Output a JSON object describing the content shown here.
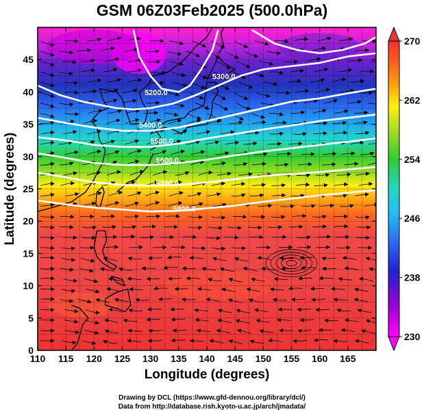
{
  "title": "GSM 06Z03Feb2025 (500.0hPa)",
  "credits": [
    "Drawing by DCL (https://www.gfd-dennou.org/library/dcl/)",
    "Data from http://database.rish.kyoto-u.ac.jp/arch/jmadata/"
  ],
  "chart_data": {
    "type": "heatmap",
    "title": "GSM 06Z03Feb2025 (500.0hPa)",
    "xlabel": "Longitude (degrees)",
    "ylabel": "Latitude  (degrees)",
    "xlim": [
      110,
      170
    ],
    "ylim": [
      0,
      50
    ],
    "x_ticks": [
      110,
      115,
      120,
      125,
      130,
      135,
      140,
      145,
      150,
      155,
      160,
      165
    ],
    "y_ticks": [
      0,
      5,
      10,
      15,
      20,
      25,
      30,
      35,
      40,
      45
    ],
    "fill_variable_range": [
      230,
      270
    ],
    "colorbar": {
      "min": 230,
      "max": 270,
      "tick_labels": [
        "230",
        "238",
        "246",
        "254",
        "262",
        "270"
      ],
      "extend": "both"
    },
    "contour_labels": [
      {
        "text": "5200.0",
        "lon": 131,
        "lat": 39.5
      },
      {
        "text": "5300.0",
        "lon": 143,
        "lat": 42.0
      },
      {
        "text": "5400.0",
        "lon": 130,
        "lat": 34.5
      },
      {
        "text": "5500.0",
        "lon": 132,
        "lat": 32.0
      },
      {
        "text": "5600.0",
        "lon": 133,
        "lat": 29.0
      },
      {
        "text": "5700.0",
        "lon": 133,
        "lat": 25.5
      },
      {
        "text": "5800.0",
        "lon": 136,
        "lat": 21.5
      }
    ],
    "contours": [
      {
        "level": 5200,
        "lon": [
          127,
          128,
          130,
          132,
          135,
          137,
          139,
          141,
          142
        ],
        "lat": [
          49.6,
          45.5,
          42.5,
          40.5,
          40.0,
          41.0,
          43.5,
          46.5,
          49.6
        ]
      },
      {
        "level": 5300,
        "lon": [
          110,
          114,
          118,
          121,
          124,
          127,
          130,
          134,
          138,
          142,
          146,
          150,
          155,
          160,
          165,
          170
        ],
        "lat": [
          41.0,
          39.5,
          38.5,
          38.0,
          37.5,
          37.3,
          37.5,
          38.2,
          39.5,
          41.0,
          42.5,
          43.5,
          44.0,
          44.5,
          45.5,
          46.0
        ]
      },
      {
        "level": 5400,
        "lon": [
          110,
          115,
          120,
          125,
          130,
          135,
          140,
          145,
          150,
          155,
          160,
          165,
          170
        ],
        "lat": [
          36.0,
          35.2,
          34.5,
          34.0,
          34.0,
          34.5,
          35.5,
          36.5,
          37.5,
          38.5,
          39.0,
          39.8,
          40.5
        ]
      },
      {
        "level": 5500,
        "lon": [
          110,
          115,
          120,
          125,
          130,
          135,
          140,
          145,
          150,
          155,
          160,
          165,
          170
        ],
        "lat": [
          33.0,
          32.5,
          31.8,
          31.5,
          31.5,
          32.0,
          32.8,
          33.5,
          34.2,
          34.8,
          35.5,
          36.0,
          36.5
        ]
      },
      {
        "level": 5600,
        "lon": [
          110,
          115,
          120,
          125,
          130,
          135,
          140,
          145,
          150,
          155,
          160,
          165,
          170
        ],
        "lat": [
          30.5,
          29.8,
          29.0,
          28.7,
          28.7,
          29.0,
          29.5,
          30.2,
          30.8,
          31.3,
          31.8,
          32.3,
          32.8
        ]
      },
      {
        "level": 5700,
        "lon": [
          110,
          115,
          120,
          125,
          130,
          135,
          140,
          145,
          150,
          155,
          160,
          165,
          170
        ],
        "lat": [
          27.5,
          26.8,
          26.0,
          25.6,
          25.5,
          25.6,
          26.0,
          26.5,
          27.0,
          27.3,
          27.6,
          28.0,
          28.4
        ]
      },
      {
        "level": 5800,
        "lon": [
          110,
          115,
          120,
          125,
          130,
          135,
          140,
          145,
          150,
          155,
          160,
          165,
          170
        ],
        "lat": [
          23.2,
          22.6,
          22.1,
          21.8,
          21.5,
          21.6,
          22.0,
          22.4,
          23.0,
          23.5,
          24.0,
          24.4,
          24.8
        ]
      },
      {
        "level": 5200,
        "lon": [
          148,
          152,
          156,
          160,
          164,
          168,
          170
        ],
        "lat": [
          49.6,
          47.5,
          46.5,
          46.0,
          46.5,
          47.5,
          48.5
        ]
      }
    ],
    "vortex_center": {
      "lon": 155,
      "lat": 13.5
    },
    "grid": true
  },
  "colors": {
    "min_color": "#ff00ff",
    "max_color": "#ee3333",
    "contour": "#ffffff"
  }
}
